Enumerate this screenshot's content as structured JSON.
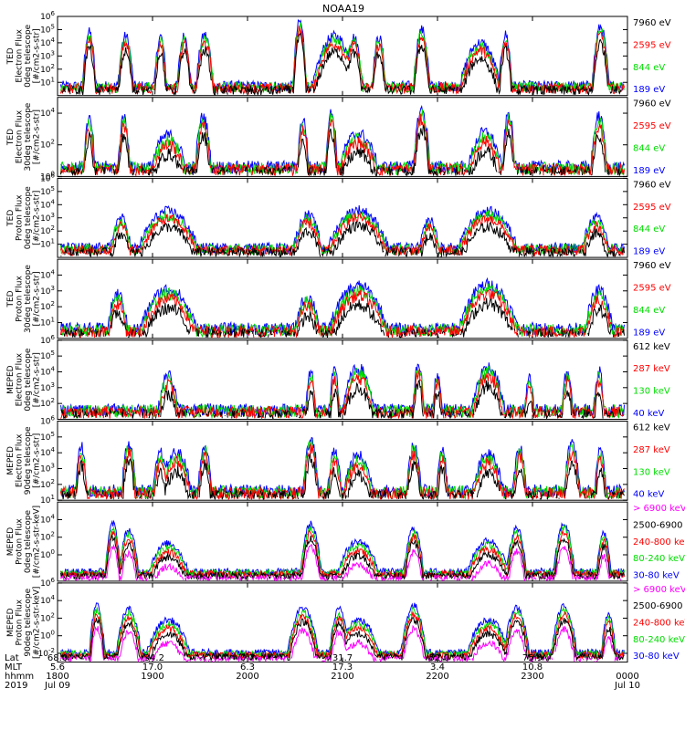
{
  "chart_data": {
    "type": "line",
    "title": "NOAA19",
    "x_axis": {
      "rows": [
        {
          "label": "Lat",
          "values": [
            "68.0",
            "-34.2",
            "0.7",
            "31.7",
            "-52.0",
            "75.9",
            ""
          ]
        },
        {
          "label": "MLT",
          "values": [
            "5.6",
            "17.0",
            "6.3",
            "17.3",
            "3.4",
            "10.8",
            ""
          ]
        },
        {
          "label": "hhmm",
          "values": [
            "1800",
            "1900",
            "2000",
            "2100",
            "2200",
            "2300",
            "0000"
          ]
        },
        {
          "label": "2019",
          "values": [
            "Jul 09",
            "",
            "",
            "",
            "",
            "",
            "Jul 10"
          ]
        }
      ],
      "xlim": [
        1800,
        2400
      ]
    },
    "panels": [
      {
        "name": "ted-electron-0deg",
        "ylabel": [
          "TED",
          "Electron Flux",
          "0deg telescope",
          "[#/cm2-s-str]"
        ],
        "ylim_exp": [
          0,
          6
        ],
        "yticks_exp": [
          1,
          2,
          3,
          4,
          5,
          6
        ],
        "legend": [
          {
            "label": "7960 eV",
            "color": "#000000"
          },
          {
            "label": "2595 eV",
            "color": "#ff0000"
          },
          {
            "label": "844 eV",
            "color": "#00dd00"
          },
          {
            "label": "189 eV",
            "color": "#0000ff"
          }
        ],
        "peaks": [
          [
            1820,
            4.8,
            1.5
          ],
          [
            1843,
            4.5,
            1.8
          ],
          [
            1905,
            4.5,
            1.4
          ],
          [
            1920,
            4.5,
            1.6
          ],
          [
            1933,
            4.6,
            2.0
          ],
          [
            2033,
            5.6,
            1.4
          ],
          [
            2055,
            4.5,
            5.0
          ],
          [
            2107,
            4.4,
            2.2
          ],
          [
            2123,
            4.4,
            1.6
          ],
          [
            2150,
            5.0,
            1.8
          ],
          [
            2227,
            4.0,
            5.0
          ],
          [
            2243,
            4.6,
            1.5
          ],
          [
            2343,
            5.2,
            1.8
          ]
        ]
      },
      {
        "name": "ted-electron-30deg",
        "ylabel": [
          "TED",
          "Electron Flux",
          "30deg telescope",
          "[#/cm2-s-str]"
        ],
        "ylim_exp": [
          0,
          5
        ],
        "yticks_exp": [
          0,
          2,
          4
        ],
        "legend": [
          {
            "label": "7960 eV",
            "color": "#000000"
          },
          {
            "label": "2595 eV",
            "color": "#ff0000"
          },
          {
            "label": "844 eV",
            "color": "#00dd00"
          },
          {
            "label": "189 eV",
            "color": "#0000ff"
          }
        ],
        "peaks": [
          [
            1820,
            3.6,
            1.5
          ],
          [
            1842,
            3.8,
            1.5
          ],
          [
            1910,
            2.6,
            5.5
          ],
          [
            1932,
            3.8,
            2.0
          ],
          [
            2035,
            3.6,
            1.5
          ],
          [
            2053,
            4.0,
            1.5
          ],
          [
            2110,
            2.7,
            6.0
          ],
          [
            2150,
            4.2,
            2.0
          ],
          [
            2230,
            2.8,
            5.0
          ],
          [
            2245,
            4.0,
            1.5
          ],
          [
            2342,
            3.8,
            2.0
          ]
        ]
      },
      {
        "name": "ted-proton-0deg",
        "ylabel": [
          "TED",
          "Proton Flux",
          "0deg telescope",
          "[#/cm2-s-str]"
        ],
        "ylim_exp": [
          0,
          6
        ],
        "yticks_exp": [
          1,
          2,
          3,
          4,
          5,
          6
        ],
        "legend": [
          {
            "label": "7960 eV",
            "color": "#000000"
          },
          {
            "label": "2595 eV",
            "color": "#ff0000"
          },
          {
            "label": "844 eV",
            "color": "#00dd00"
          },
          {
            "label": "189 eV",
            "color": "#0000ff"
          }
        ],
        "peaks": [
          [
            1910,
            3.5,
            8.0
          ],
          [
            2110,
            3.6,
            8.0
          ],
          [
            2232,
            3.5,
            8.0
          ],
          [
            1840,
            3.0,
            3.0
          ],
          [
            2038,
            3.2,
            4.0
          ],
          [
            2340,
            3.0,
            4.0
          ],
          [
            2155,
            2.8,
            3.0
          ]
        ]
      },
      {
        "name": "ted-proton-30deg",
        "ylabel": [
          "TED",
          "Proton Flux",
          "30deg telescope",
          "[#/cm2-s-str]"
        ],
        "ylim_exp": [
          0,
          5
        ],
        "yticks_exp": [
          1,
          2,
          3,
          4
        ],
        "legend": [
          {
            "label": "7960 eV",
            "color": "#000000"
          },
          {
            "label": "2595 eV",
            "color": "#ff0000"
          },
          {
            "label": "844 eV",
            "color": "#00dd00"
          },
          {
            "label": "189 eV",
            "color": "#0000ff"
          }
        ],
        "peaks": [
          [
            1910,
            3.1,
            8.0
          ],
          [
            2110,
            3.3,
            8.0
          ],
          [
            2232,
            3.4,
            8.0
          ],
          [
            1838,
            2.8,
            3.0
          ],
          [
            2038,
            2.6,
            4.0
          ],
          [
            2342,
            3.0,
            4.0
          ]
        ]
      },
      {
        "name": "meped-electron-0deg",
        "ylabel": [
          "MEPED",
          "Electron Flux",
          "0deg telescope",
          "[#/cm2-s-str]"
        ],
        "ylim_exp": [
          1,
          6
        ],
        "yticks_exp": [
          2,
          3,
          4,
          5,
          6
        ],
        "legend": [
          {
            "label": "612 keV",
            "color": "#000000"
          },
          {
            "label": "287 keV",
            "color": "#ff0000"
          },
          {
            "label": "130 keV",
            "color": "#00dd00"
          },
          {
            "label": "40 keV",
            "color": "#0000ff"
          }
        ],
        "peaks": [
          [
            1910,
            3.8,
            3.0
          ],
          [
            2110,
            4.2,
            4.5
          ],
          [
            2232,
            4.3,
            4.5
          ],
          [
            2040,
            4.0,
            1.5
          ],
          [
            2055,
            4.0,
            1.5
          ],
          [
            2148,
            4.5,
            1.5
          ],
          [
            2200,
            3.8,
            1.5
          ],
          [
            2258,
            3.5,
            1.5
          ],
          [
            2322,
            4.0,
            1.5
          ],
          [
            2342,
            4.0,
            1.5
          ]
        ]
      },
      {
        "name": "meped-electron-90deg",
        "ylabel": [
          "MEPED",
          "Electron Flux",
          "90deg telescope",
          "[#/cm2-s-str]"
        ],
        "ylim_exp": [
          1,
          6
        ],
        "yticks_exp": [
          1,
          2,
          3,
          4,
          5,
          6
        ],
        "legend": [
          {
            "label": "612 keV",
            "color": "#000000"
          },
          {
            "label": "287 keV",
            "color": "#ff0000"
          },
          {
            "label": "130 keV",
            "color": "#00dd00"
          },
          {
            "label": "40 keV",
            "color": "#0000ff"
          }
        ],
        "peaks": [
          [
            1815,
            4.4,
            1.5
          ],
          [
            1845,
            4.6,
            1.8
          ],
          [
            1905,
            4.0,
            2.0
          ],
          [
            1915,
            4.0,
            4.5
          ],
          [
            1933,
            4.4,
            1.8
          ],
          [
            2040,
            4.8,
            2.0
          ],
          [
            2055,
            4.0,
            2.0
          ],
          [
            2110,
            3.8,
            4.5
          ],
          [
            2145,
            4.4,
            2.0
          ],
          [
            2203,
            4.2,
            1.5
          ],
          [
            2232,
            3.9,
            4.5
          ],
          [
            2252,
            4.3,
            1.8
          ],
          [
            2325,
            4.6,
            2.0
          ],
          [
            2343,
            4.2,
            1.5
          ]
        ]
      },
      {
        "name": "meped-proton-0deg",
        "ylabel": [
          "MEPED",
          "Proton Flux",
          "0deg telescope",
          "[#/cm2-s-str-keV]"
        ],
        "ylim_exp": [
          -3,
          6
        ],
        "yticks_exp": [
          0,
          2,
          4
        ],
        "legend": [
          {
            "label": "> 6900 keV",
            "color": "#ff00ff"
          },
          {
            "label": "2500-6900",
            "color": "#000000"
          },
          {
            "label": "240-800 ke",
            "color": "#ff0000"
          },
          {
            "label": "80-240 keV",
            "color": "#00dd00"
          },
          {
            "label": "30-80 keV",
            "color": "#0000ff"
          }
        ],
        "peaks": [
          [
            1835,
            3.5,
            1.5
          ],
          [
            1845,
            2.8,
            2.0
          ],
          [
            1910,
            1.3,
            5.0
          ],
          [
            2040,
            3.5,
            2.0
          ],
          [
            2110,
            1.5,
            5.0
          ],
          [
            2145,
            3.0,
            2.0
          ],
          [
            2232,
            1.6,
            5.0
          ],
          [
            2250,
            3.0,
            2.0
          ],
          [
            2320,
            3.5,
            2.0
          ],
          [
            2345,
            2.5,
            1.5
          ]
        ]
      },
      {
        "name": "meped-proton-90deg",
        "ylabel": [
          "MEPED",
          "Proton Flux",
          "90deg telescope",
          "[#/cm2-s-str-keV]"
        ],
        "ylim_exp": [
          -3,
          6
        ],
        "yticks_exp": [
          -2,
          0,
          2,
          4,
          6
        ],
        "legend": [
          {
            "label": "> 6900 keV",
            "color": "#ff00ff"
          },
          {
            "label": "2500-6900",
            "color": "#000000"
          },
          {
            "label": "240-800 keV",
            "color": "#ff0000"
          },
          {
            "label": "80-240 keV",
            "color": "#00dd00"
          },
          {
            "label": "30-80 keV",
            "color": "#0000ff"
          }
        ],
        "peaks": [
          [
            1825,
            3.5,
            1.5
          ],
          [
            1845,
            3.0,
            2.5
          ],
          [
            1910,
            1.8,
            5.0
          ],
          [
            2035,
            3.2,
            3.0
          ],
          [
            2058,
            3.0,
            2.0
          ],
          [
            2110,
            1.8,
            5.0
          ],
          [
            2145,
            3.4,
            2.5
          ],
          [
            2232,
            1.8,
            5.0
          ],
          [
            2250,
            3.2,
            2.5
          ],
          [
            2320,
            3.3,
            2.5
          ],
          [
            2348,
            2.5,
            1.5
          ]
        ]
      }
    ]
  }
}
